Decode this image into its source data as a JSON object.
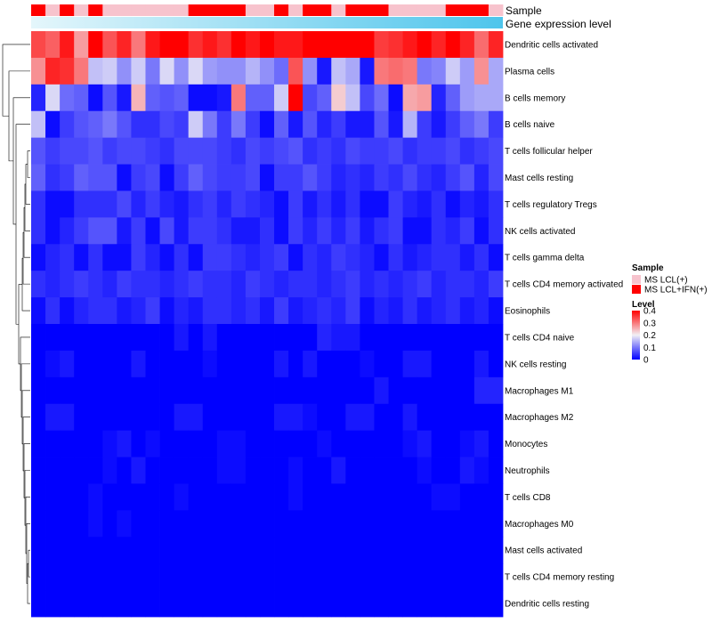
{
  "chart_data": {
    "type": "heatmap",
    "annotations": {
      "sample_label": "Sample",
      "gene_label": "Gene expression level",
      "sample_groups": [
        "R",
        "P",
        "R",
        "P",
        "R",
        "P",
        "P",
        "P",
        "P",
        "P",
        "P",
        "R",
        "R",
        "R",
        "R",
        "P",
        "P",
        "R",
        "P",
        "R",
        "R",
        "P",
        "R",
        "R",
        "R",
        "P",
        "P",
        "P",
        "P",
        "R",
        "R",
        "R",
        "P"
      ]
    },
    "rows": [
      "Dendritic cells activated",
      "Plasma cells",
      "B cells memory",
      "B cells naive",
      "T cells follicular helper",
      "Mast cells resting",
      "T cells regulatory  Tregs",
      "NK cells activated",
      "T cells gamma delta",
      "T cells CD4 memory activated",
      "Eosinophils",
      "T cells CD4 naive",
      "NK cells resting",
      "Macrophages M1",
      "Macrophages M2",
      "Monocytes",
      "Neutrophils",
      "T cells CD8",
      "Macrophages M0",
      "Mast cells activated",
      "T cells CD4 memory resting",
      "Dendritic cells resting"
    ],
    "n_cols": 33,
    "values": [
      [
        0.34,
        0.32,
        0.38,
        0.27,
        0.4,
        0.33,
        0.37,
        0.3,
        0.38,
        0.4,
        0.4,
        0.36,
        0.38,
        0.36,
        0.4,
        0.38,
        0.4,
        0.38,
        0.38,
        0.4,
        0.4,
        0.4,
        0.4,
        0.4,
        0.35,
        0.36,
        0.38,
        0.4,
        0.37,
        0.4,
        0.37,
        0.31,
        0.37
      ],
      [
        0.28,
        0.37,
        0.36,
        0.3,
        0.16,
        0.17,
        0.12,
        0.17,
        0.1,
        0.18,
        0.12,
        0.18,
        0.13,
        0.12,
        0.12,
        0.15,
        0.12,
        0.09,
        0.33,
        0.12,
        0.02,
        0.16,
        0.14,
        0.02,
        0.3,
        0.31,
        0.3,
        0.1,
        0.11,
        0.17,
        0.13,
        0.28,
        0.14
      ],
      [
        0.03,
        0.18,
        0.09,
        0.08,
        0.01,
        0.07,
        0.02,
        0.25,
        0.08,
        0.07,
        0.08,
        0.01,
        0.01,
        0.02,
        0.3,
        0.08,
        0.08,
        0.17,
        0.4,
        0.06,
        0.08,
        0.23,
        0.16,
        0.06,
        0.09,
        0.01,
        0.26,
        0.27,
        0.03,
        0.08,
        0.13,
        0.14,
        0.14
      ],
      [
        0.16,
        0.01,
        0.05,
        0.07,
        0.08,
        0.1,
        0.07,
        0.04,
        0.04,
        0.06,
        0.05,
        0.17,
        0.1,
        0.05,
        0.1,
        0.05,
        0.01,
        0.08,
        0.02,
        0.07,
        0.03,
        0.05,
        0.02,
        0.02,
        0.07,
        0.02,
        0.15,
        0.05,
        0.02,
        0.05,
        0.08,
        0.1,
        0.05
      ],
      [
        0.07,
        0.05,
        0.06,
        0.06,
        0.07,
        0.05,
        0.06,
        0.06,
        0.05,
        0.04,
        0.06,
        0.06,
        0.06,
        0.05,
        0.04,
        0.06,
        0.05,
        0.06,
        0.07,
        0.04,
        0.05,
        0.04,
        0.06,
        0.05,
        0.05,
        0.06,
        0.04,
        0.05,
        0.05,
        0.06,
        0.04,
        0.05,
        0.06
      ],
      [
        0.08,
        0.04,
        0.05,
        0.08,
        0.07,
        0.07,
        0.01,
        0.05,
        0.06,
        0.01,
        0.05,
        0.08,
        0.06,
        0.05,
        0.05,
        0.06,
        0.01,
        0.05,
        0.05,
        0.07,
        0.05,
        0.03,
        0.04,
        0.03,
        0.05,
        0.04,
        0.06,
        0.04,
        0.03,
        0.05,
        0.07,
        0.03,
        0.06
      ],
      [
        0.04,
        0.01,
        0.01,
        0.04,
        0.04,
        0.04,
        0.06,
        0.03,
        0.05,
        0.03,
        0.02,
        0.04,
        0.05,
        0.03,
        0.05,
        0.04,
        0.03,
        0.01,
        0.05,
        0.02,
        0.04,
        0.02,
        0.04,
        0.01,
        0.01,
        0.05,
        0.03,
        0.02,
        0.04,
        0.01,
        0.03,
        0.02,
        0.04
      ],
      [
        0.04,
        0.01,
        0.03,
        0.05,
        0.07,
        0.07,
        0.02,
        0.05,
        0.01,
        0.06,
        0.02,
        0.05,
        0.05,
        0.04,
        0.02,
        0.02,
        0.04,
        0.01,
        0.05,
        0.03,
        0.05,
        0.03,
        0.05,
        0.02,
        0.04,
        0.05,
        0.01,
        0.01,
        0.04,
        0.03,
        0.05,
        0.01,
        0.04
      ],
      [
        0.01,
        0.03,
        0.04,
        0.01,
        0.04,
        0.01,
        0.01,
        0.05,
        0.03,
        0.01,
        0.04,
        0.01,
        0.05,
        0.05,
        0.04,
        0.03,
        0.04,
        0.05,
        0.01,
        0.04,
        0.03,
        0.05,
        0.04,
        0.03,
        0.01,
        0.04,
        0.02,
        0.03,
        0.04,
        0.04,
        0.02,
        0.04,
        0.01
      ],
      [
        0.04,
        0.03,
        0.04,
        0.05,
        0.04,
        0.03,
        0.05,
        0.04,
        0.04,
        0.03,
        0.04,
        0.05,
        0.04,
        0.04,
        0.03,
        0.05,
        0.04,
        0.03,
        0.04,
        0.04,
        0.03,
        0.04,
        0.05,
        0.03,
        0.04,
        0.03,
        0.04,
        0.05,
        0.03,
        0.04,
        0.04,
        0.03,
        0.05
      ],
      [
        0.01,
        0.04,
        0.01,
        0.03,
        0.04,
        0.04,
        0.02,
        0.03,
        0.05,
        0.01,
        0.03,
        0.02,
        0.04,
        0.04,
        0.03,
        0.04,
        0.02,
        0.05,
        0.02,
        0.03,
        0.04,
        0.03,
        0.05,
        0.01,
        0.03,
        0.02,
        0.04,
        0.02,
        0.03,
        0.04,
        0.02,
        0.03,
        0.01
      ],
      [
        0.0,
        0.0,
        0.0,
        0.0,
        0.0,
        0.0,
        0.0,
        0.0,
        0.0,
        0.0,
        0.02,
        0.0,
        0.02,
        0.0,
        0.0,
        0.0,
        0.0,
        0.0,
        0.0,
        0.0,
        0.03,
        0.02,
        0.02,
        0.0,
        0.0,
        0.0,
        0.0,
        0.0,
        0.0,
        0.0,
        0.0,
        0.0,
        0.0
      ],
      [
        0.0,
        0.01,
        0.02,
        0.0,
        0.0,
        0.0,
        0.0,
        0.02,
        0.0,
        0.0,
        0.0,
        0.0,
        0.01,
        0.0,
        0.0,
        0.0,
        0.0,
        0.02,
        0.0,
        0.02,
        0.0,
        0.0,
        0.0,
        0.01,
        0.0,
        0.0,
        0.02,
        0.02,
        0.0,
        0.0,
        0.0,
        0.02,
        0.0
      ],
      [
        0.0,
        0.0,
        0.0,
        0.0,
        0.0,
        0.0,
        0.0,
        0.0,
        0.0,
        0.0,
        0.0,
        0.0,
        0.0,
        0.0,
        0.0,
        0.0,
        0.0,
        0.0,
        0.0,
        0.0,
        0.0,
        0.0,
        0.0,
        0.0,
        0.02,
        0.0,
        0.0,
        0.0,
        0.0,
        0.0,
        0.0,
        0.03,
        0.03
      ],
      [
        0.0,
        0.02,
        0.02,
        0.0,
        0.0,
        0.0,
        0.0,
        0.0,
        0.0,
        0.0,
        0.02,
        0.02,
        0.0,
        0.0,
        0.0,
        0.0,
        0.0,
        0.02,
        0.02,
        0.01,
        0.0,
        0.0,
        0.02,
        0.02,
        0.0,
        0.0,
        0.02,
        0.0,
        0.0,
        0.0,
        0.0,
        0.0,
        0.0
      ],
      [
        0.0,
        0.0,
        0.0,
        0.0,
        0.0,
        0.01,
        0.02,
        0.0,
        0.01,
        0.0,
        0.0,
        0.0,
        0.0,
        0.01,
        0.01,
        0.0,
        0.0,
        0.0,
        0.0,
        0.0,
        0.01,
        0.0,
        0.0,
        0.0,
        0.0,
        0.0,
        0.01,
        0.02,
        0.0,
        0.0,
        0.01,
        0.02,
        0.0
      ],
      [
        0.0,
        0.0,
        0.0,
        0.0,
        0.0,
        0.01,
        0.0,
        0.02,
        0.0,
        0.0,
        0.0,
        0.0,
        0.0,
        0.01,
        0.01,
        0.0,
        0.0,
        0.0,
        0.01,
        0.0,
        0.0,
        0.02,
        0.0,
        0.0,
        0.0,
        0.0,
        0.0,
        0.01,
        0.0,
        0.0,
        0.02,
        0.01,
        0.0
      ],
      [
        0.0,
        0.0,
        0.0,
        0.0,
        0.01,
        0.0,
        0.0,
        0.0,
        0.0,
        0.0,
        0.01,
        0.0,
        0.0,
        0.0,
        0.0,
        0.0,
        0.0,
        0.0,
        0.01,
        0.0,
        0.0,
        0.0,
        0.0,
        0.0,
        0.0,
        0.0,
        0.0,
        0.0,
        0.01,
        0.01,
        0.0,
        0.0,
        0.0
      ],
      [
        0.0,
        0.0,
        0.0,
        0.0,
        0.01,
        0.0,
        0.01,
        0.0,
        0.0,
        0.0,
        0.0,
        0.0,
        0.0,
        0.0,
        0.0,
        0.0,
        0.0,
        0.0,
        0.0,
        0.0,
        0.0,
        0.0,
        0.0,
        0.0,
        0.0,
        0.0,
        0.0,
        0.0,
        0.0,
        0.0,
        0.0,
        0.0,
        0.0
      ],
      [
        0.0,
        0.0,
        0.0,
        0.0,
        0.0,
        0.0,
        0.0,
        0.0,
        0.0,
        0.0,
        0.0,
        0.0,
        0.0,
        0.0,
        0.0,
        0.0,
        0.0,
        0.0,
        0.0,
        0.0,
        0.0,
        0.0,
        0.0,
        0.0,
        0.0,
        0.0,
        0.0,
        0.0,
        0.0,
        0.0,
        0.0,
        0.0,
        0.0
      ],
      [
        0.0,
        0.0,
        0.0,
        0.0,
        0.0,
        0.0,
        0.0,
        0.0,
        0.0,
        0.0,
        0.0,
        0.0,
        0.0,
        0.0,
        0.0,
        0.0,
        0.0,
        0.0,
        0.0,
        0.0,
        0.0,
        0.0,
        0.0,
        0.0,
        0.0,
        0.0,
        0.0,
        0.0,
        0.0,
        0.0,
        0.0,
        0.0,
        0.0
      ],
      [
        0.0,
        0.0,
        0.0,
        0.0,
        0.0,
        0.0,
        0.0,
        0.0,
        0.0,
        0.0,
        0.0,
        0.0,
        0.0,
        0.0,
        0.0,
        0.0,
        0.0,
        0.0,
        0.0,
        0.0,
        0.0,
        0.0,
        0.0,
        0.0,
        0.0,
        0.0,
        0.0,
        0.0,
        0.0,
        0.0,
        0.0,
        0.0,
        0.0
      ]
    ],
    "color_scale": {
      "domain": [
        0,
        0.2,
        0.4
      ],
      "colors": [
        "#0000ff",
        "#f2f0f5",
        "#ff0000"
      ]
    },
    "legend": {
      "position": "right",
      "sample_title": "Sample",
      "sample_items": [
        {
          "key": "P",
          "label": "MS LCL(+)",
          "color": "#f7c3cd"
        },
        {
          "key": "R",
          "label": "MS LCL+IFN(+)",
          "color": "#ff0000"
        }
      ],
      "level_title": "Level",
      "level_ticks": [
        0.4,
        0.3,
        0.2,
        0.1,
        0
      ],
      "level_tick_labels": [
        "0.4",
        "0.3",
        "0.2",
        "0.1",
        "0"
      ]
    },
    "gene_annotation_color_start": "#e4f6fb",
    "gene_annotation_color_end": "#4ec5ec"
  }
}
